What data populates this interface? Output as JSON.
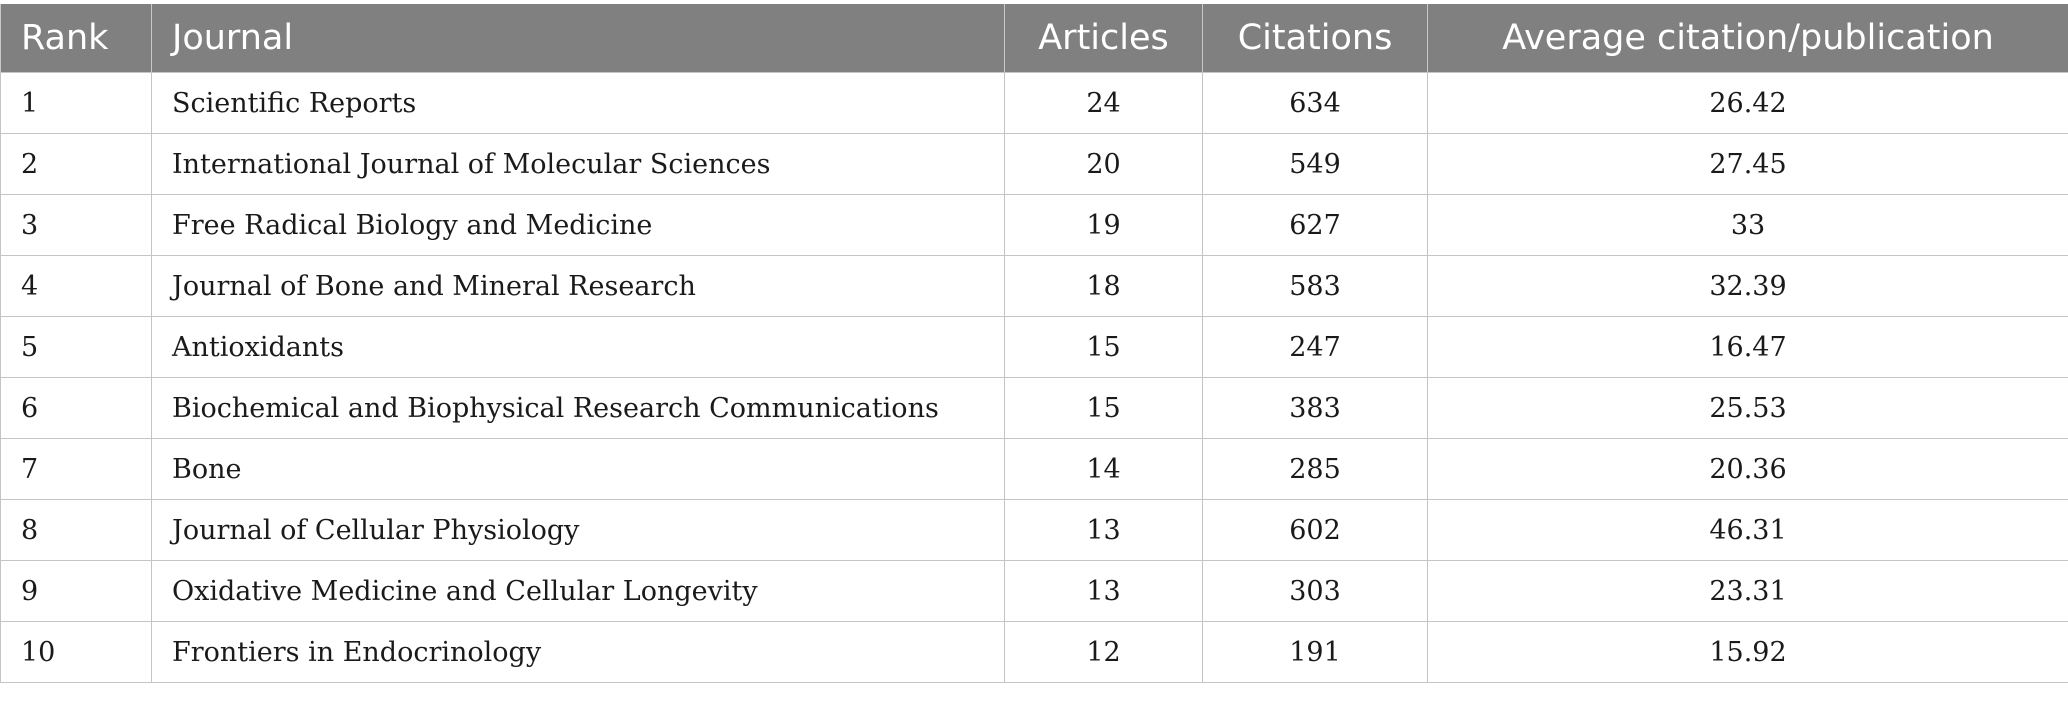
{
  "table": {
    "headers": {
      "rank": "Rank",
      "journal": "Journal",
      "articles": "Articles",
      "citations": "Citations",
      "average": "Average citation/publication"
    },
    "rows": [
      {
        "rank": "1",
        "journal": "Scientific Reports",
        "articles": "24",
        "citations": "634",
        "average": "26.42"
      },
      {
        "rank": "2",
        "journal": "International Journal of Molecular Sciences",
        "articles": "20",
        "citations": "549",
        "average": "27.45"
      },
      {
        "rank": "3",
        "journal": "Free Radical Biology and Medicine",
        "articles": "19",
        "citations": "627",
        "average": "33"
      },
      {
        "rank": "4",
        "journal": "Journal of Bone and Mineral Research",
        "articles": "18",
        "citations": "583",
        "average": "32.39"
      },
      {
        "rank": "5",
        "journal": "Antioxidants",
        "articles": "15",
        "citations": "247",
        "average": "16.47"
      },
      {
        "rank": "6",
        "journal": "Biochemical and Biophysical Research Communications",
        "articles": "15",
        "citations": "383",
        "average": "25.53"
      },
      {
        "rank": "7",
        "journal": "Bone",
        "articles": "14",
        "citations": "285",
        "average": "20.36"
      },
      {
        "rank": "8",
        "journal": "Journal of Cellular Physiology",
        "articles": "13",
        "citations": "602",
        "average": "46.31"
      },
      {
        "rank": "9",
        "journal": "Oxidative Medicine and Cellular Longevity",
        "articles": "13",
        "citations": "303",
        "average": "23.31"
      },
      {
        "rank": "10",
        "journal": "Frontiers in Endocrinology",
        "articles": "12",
        "citations": "191",
        "average": "15.92"
      }
    ]
  }
}
